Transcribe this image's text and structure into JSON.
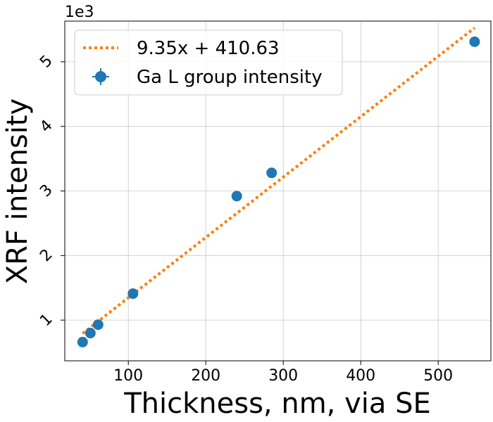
{
  "chart_data": {
    "type": "scatter",
    "xlabel": "Thickness, nm, via SE",
    "ylabel": "XRF intensity",
    "y_offset_label": "1e3",
    "xlim": [
      18,
      568
    ],
    "ylim": [
      0.37,
      5.63
    ],
    "x_ticks": [
      100,
      200,
      300,
      400,
      500
    ],
    "y_ticks": [
      1,
      2,
      3,
      4,
      5
    ],
    "grid": true,
    "legend_position": "top-left",
    "series": [
      {
        "name": "Ga L group intensity",
        "kind": "scatter",
        "color": "#1f77b4",
        "x": [
          41,
          51,
          61,
          106,
          240,
          285,
          547
        ],
        "y": [
          0.66,
          0.8,
          0.93,
          1.41,
          2.92,
          3.28,
          5.31
        ]
      },
      {
        "name": "9.35x + 410.63",
        "kind": "fit-line",
        "style": "dotted",
        "color": "#ff7f0e",
        "slope": 9.35,
        "intercept": 410.63,
        "x_range": [
          41,
          547
        ]
      }
    ]
  }
}
